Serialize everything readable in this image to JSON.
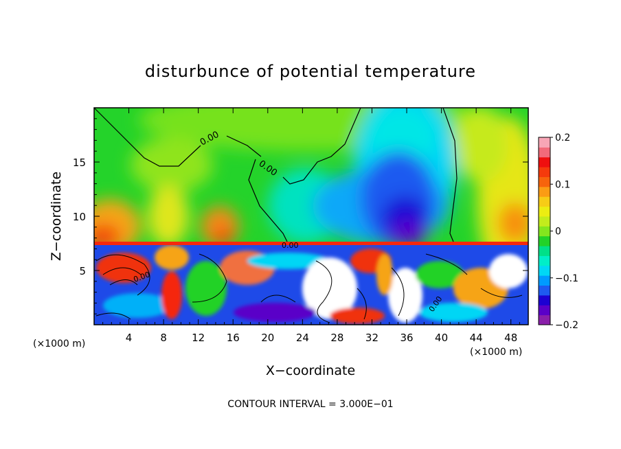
{
  "chart_data": {
    "type": "heatmap",
    "title": "disturbunce of potential temperature",
    "xlabel": "X−coordinate",
    "ylabel": "Z−coordinate",
    "x_unit_label": "(×1000 m)",
    "y_unit_label": "(×1000 m)",
    "xlim": [
      0,
      50
    ],
    "ylim": [
      0,
      20
    ],
    "x_ticks": [
      4,
      8,
      12,
      16,
      20,
      24,
      28,
      32,
      36,
      40,
      44,
      48
    ],
    "y_ticks": [
      5,
      10,
      15
    ],
    "colorbar": {
      "range": [
        -0.2,
        0.2
      ],
      "tick_labels": [
        "0.2",
        "0.1",
        "0",
        "−0.1",
        "−0.2"
      ],
      "tick_values": [
        0.2,
        0.1,
        0,
        -0.1,
        -0.2
      ],
      "colors": [
        "#8a1faa",
        "#5a00c8",
        "#1c00d2",
        "#1e5af0",
        "#009bff",
        "#00d8f5",
        "#00eec8",
        "#00e088",
        "#22d228",
        "#84e61e",
        "#c3ec1c",
        "#eced12",
        "#f7cc16",
        "#fb9c14",
        "#f7640c",
        "#f53a0c",
        "#ef0f0f",
        "#f26a7a",
        "#f8a6b6"
      ]
    },
    "contour_labels": [
      "0.00",
      "0.00",
      "0.00",
      "0.00",
      "0.00"
    ],
    "footer": "CONTOUR INTERVAL =  3.000E−01",
    "field_features": [
      {
        "region": "upper layer z > 7.3",
        "pattern": "smooth; positive (+0.1) near left/right edges and bottom of layer, near-zero green mid, strong negative core (~-0.2) at x 30-38, z 8-11"
      },
      {
        "region": "lower layer z < 7.3",
        "pattern": "turbulent; alternating strong positive/negative, saturated beyond ±0.2 (white)"
      }
    ]
  }
}
